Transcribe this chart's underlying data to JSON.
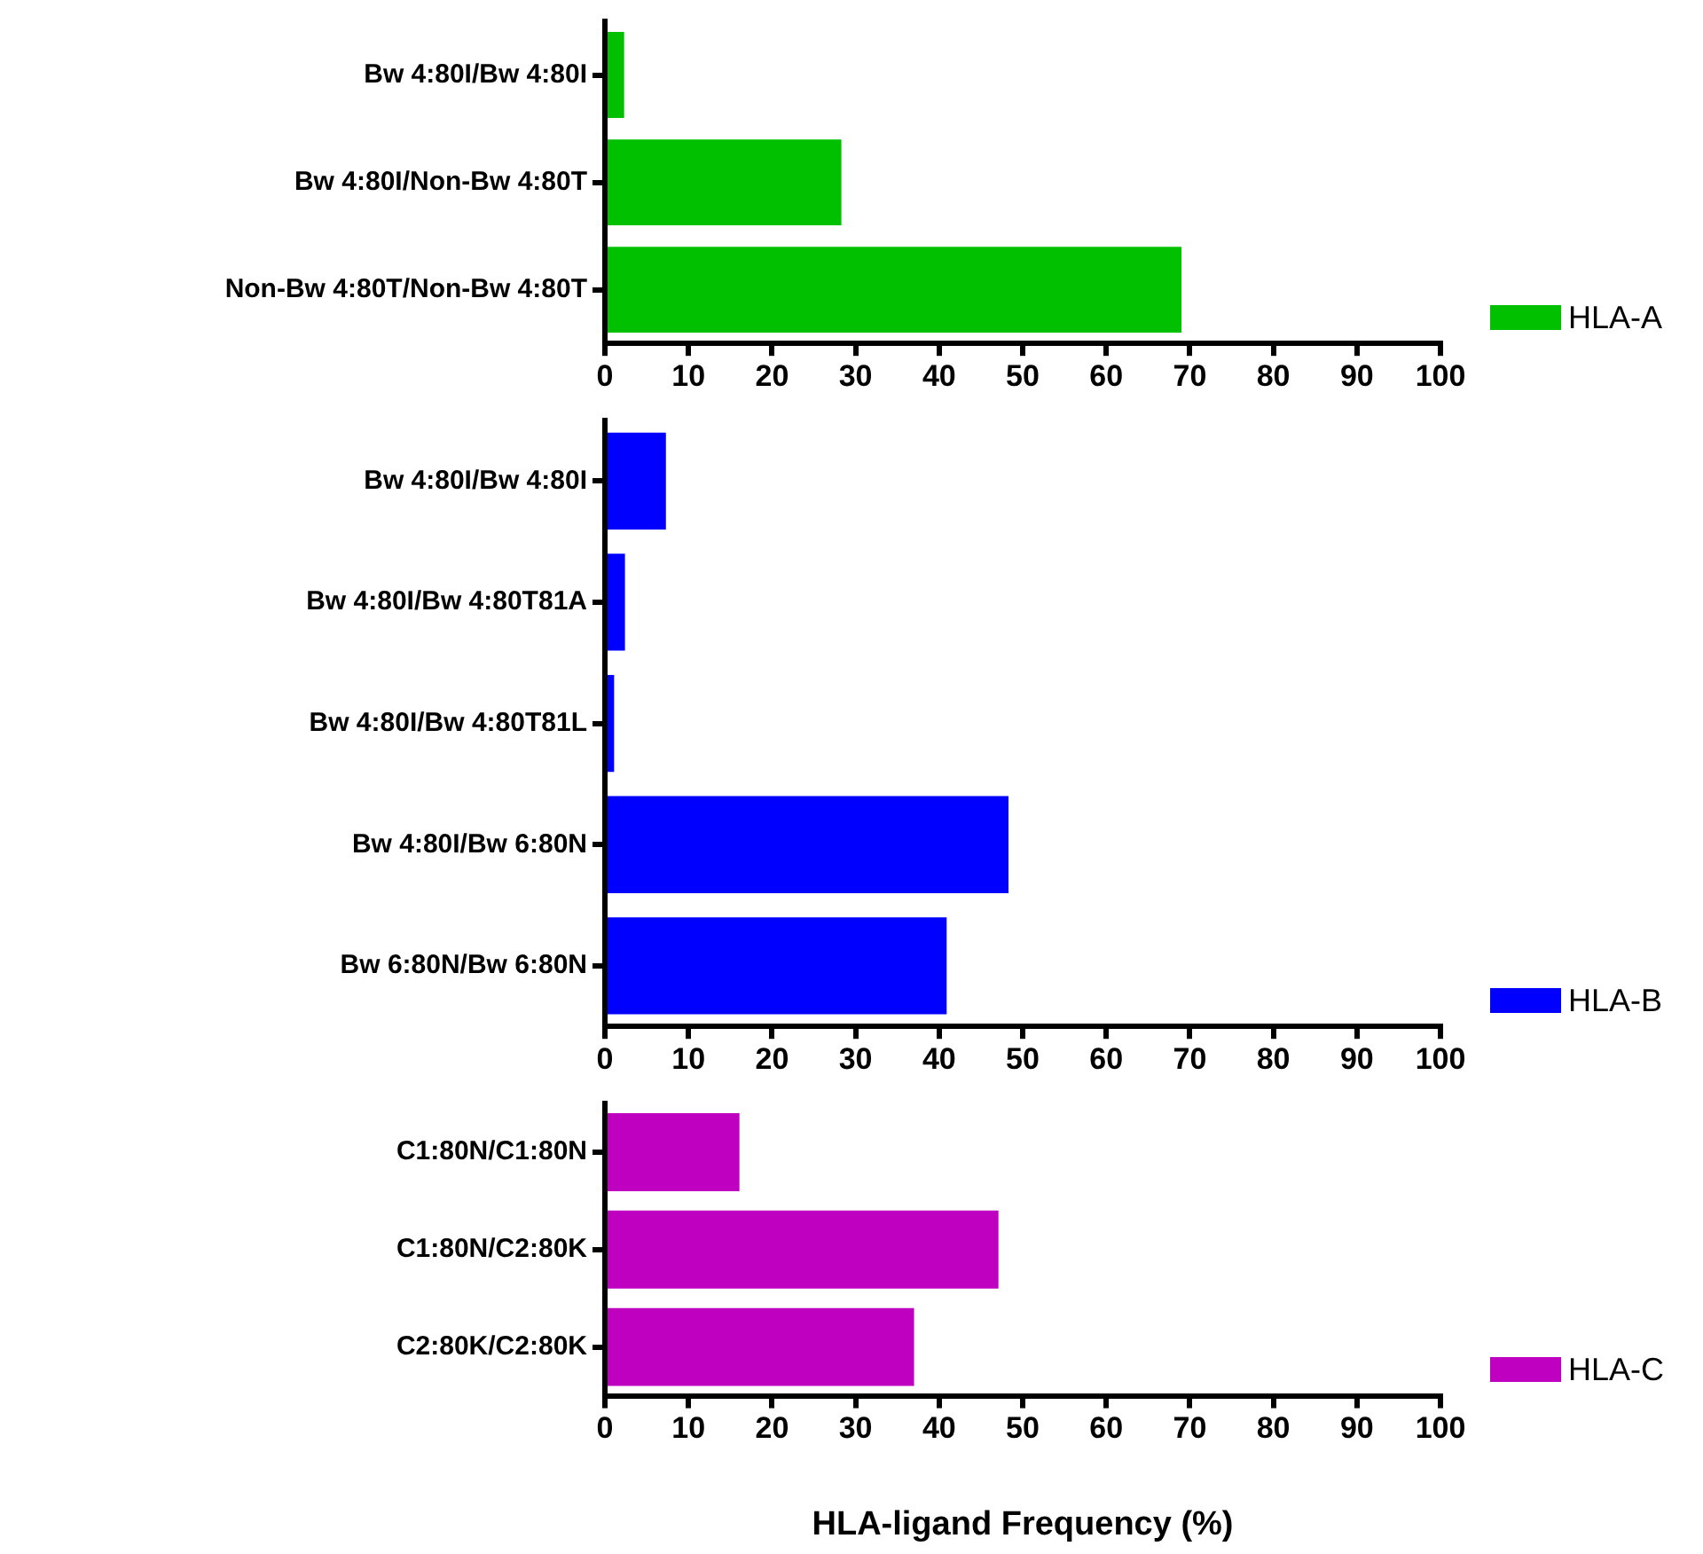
{
  "chart_data": [
    {
      "type": "bar",
      "orientation": "horizontal",
      "categories": [
        "Bw 4:80I/Bw 4:80I",
        "Bw 4:80I/Non-Bw 4:80T",
        "Non-Bw 4:80T/Non-Bw 4:80T"
      ],
      "series": [
        {
          "name": "HLA-A",
          "color": "#00c000",
          "values": [
            2.3,
            28.3,
            69
          ]
        }
      ],
      "xlim": [
        0,
        100
      ],
      "xticks": [
        0,
        10,
        20,
        30,
        40,
        50,
        60,
        70,
        80,
        90,
        100
      ],
      "legend": "bottom right",
      "grid": false
    },
    {
      "type": "bar",
      "orientation": "horizontal",
      "categories": [
        "Bw 4:80I/Bw 4:80I",
        "Bw 4:80I/Bw 4:80T81A",
        "Bw 4:80I/Bw 4:80T81L",
        "Bw 4:80I/Bw 6:80N",
        "Bw 6:80N/Bw 6:80N"
      ],
      "series": [
        {
          "name": "HLA-B",
          "color": "#0000ff",
          "values": [
            7.3,
            2.4,
            1.1,
            48.3,
            40.9
          ]
        }
      ],
      "xlim": [
        0,
        100
      ],
      "xticks": [
        0,
        10,
        20,
        30,
        40,
        50,
        60,
        70,
        80,
        90,
        100
      ],
      "legend": "bottom right",
      "grid": false
    },
    {
      "type": "bar",
      "orientation": "horizontal",
      "categories": [
        "C1:80N/C1:80N",
        "C1:80N/C2:80K",
        "C2:80K/C2:80K"
      ],
      "series": [
        {
          "name": "HLA-C",
          "color": "#c000c0",
          "values": [
            16.1,
            47.1,
            37
          ]
        }
      ],
      "xlim": [
        0,
        100
      ],
      "xticks": [
        0,
        10,
        20,
        30,
        40,
        50,
        60,
        70,
        80,
        90,
        100
      ],
      "xlabel": "HLA-ligand Frequency (%)",
      "legend": "bottom right",
      "grid": false
    }
  ]
}
